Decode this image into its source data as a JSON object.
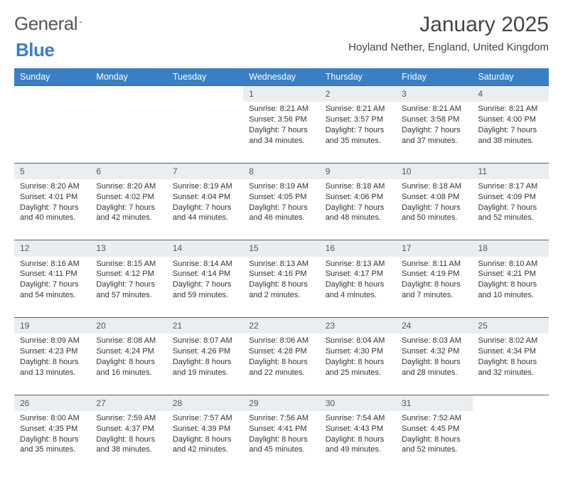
{
  "logo": {
    "text1": "General",
    "text2": "Blue"
  },
  "title": "January 2025",
  "subtitle": "Hoyland Nether, England, United Kingdom",
  "colors": {
    "header_bg": "#3a7fc4",
    "header_fg": "#ffffff",
    "daynum_bg": "#ebeef1",
    "border": "#5a5f66",
    "text": "#333333"
  },
  "fonts": {
    "title_size": 30,
    "subtitle_size": 15,
    "header_size": 12.5,
    "cell_size": 11
  },
  "day_headers": [
    "Sunday",
    "Monday",
    "Tuesday",
    "Wednesday",
    "Thursday",
    "Friday",
    "Saturday"
  ],
  "weeks": [
    {
      "nums": [
        "",
        "",
        "",
        "1",
        "2",
        "3",
        "4"
      ],
      "cells": [
        null,
        null,
        null,
        {
          "sunrise": "Sunrise: 8:21 AM",
          "sunset": "Sunset: 3:56 PM",
          "day1": "Daylight: 7 hours",
          "day2": "and 34 minutes."
        },
        {
          "sunrise": "Sunrise: 8:21 AM",
          "sunset": "Sunset: 3:57 PM",
          "day1": "Daylight: 7 hours",
          "day2": "and 35 minutes."
        },
        {
          "sunrise": "Sunrise: 8:21 AM",
          "sunset": "Sunset: 3:58 PM",
          "day1": "Daylight: 7 hours",
          "day2": "and 37 minutes."
        },
        {
          "sunrise": "Sunrise: 8:21 AM",
          "sunset": "Sunset: 4:00 PM",
          "day1": "Daylight: 7 hours",
          "day2": "and 38 minutes."
        }
      ]
    },
    {
      "nums": [
        "5",
        "6",
        "7",
        "8",
        "9",
        "10",
        "11"
      ],
      "cells": [
        {
          "sunrise": "Sunrise: 8:20 AM",
          "sunset": "Sunset: 4:01 PM",
          "day1": "Daylight: 7 hours",
          "day2": "and 40 minutes."
        },
        {
          "sunrise": "Sunrise: 8:20 AM",
          "sunset": "Sunset: 4:02 PM",
          "day1": "Daylight: 7 hours",
          "day2": "and 42 minutes."
        },
        {
          "sunrise": "Sunrise: 8:19 AM",
          "sunset": "Sunset: 4:04 PM",
          "day1": "Daylight: 7 hours",
          "day2": "and 44 minutes."
        },
        {
          "sunrise": "Sunrise: 8:19 AM",
          "sunset": "Sunset: 4:05 PM",
          "day1": "Daylight: 7 hours",
          "day2": "and 46 minutes."
        },
        {
          "sunrise": "Sunrise: 8:18 AM",
          "sunset": "Sunset: 4:06 PM",
          "day1": "Daylight: 7 hours",
          "day2": "and 48 minutes."
        },
        {
          "sunrise": "Sunrise: 8:18 AM",
          "sunset": "Sunset: 4:08 PM",
          "day1": "Daylight: 7 hours",
          "day2": "and 50 minutes."
        },
        {
          "sunrise": "Sunrise: 8:17 AM",
          "sunset": "Sunset: 4:09 PM",
          "day1": "Daylight: 7 hours",
          "day2": "and 52 minutes."
        }
      ]
    },
    {
      "nums": [
        "12",
        "13",
        "14",
        "15",
        "16",
        "17",
        "18"
      ],
      "cells": [
        {
          "sunrise": "Sunrise: 8:16 AM",
          "sunset": "Sunset: 4:11 PM",
          "day1": "Daylight: 7 hours",
          "day2": "and 54 minutes."
        },
        {
          "sunrise": "Sunrise: 8:15 AM",
          "sunset": "Sunset: 4:12 PM",
          "day1": "Daylight: 7 hours",
          "day2": "and 57 minutes."
        },
        {
          "sunrise": "Sunrise: 8:14 AM",
          "sunset": "Sunset: 4:14 PM",
          "day1": "Daylight: 7 hours",
          "day2": "and 59 minutes."
        },
        {
          "sunrise": "Sunrise: 8:13 AM",
          "sunset": "Sunset: 4:16 PM",
          "day1": "Daylight: 8 hours",
          "day2": "and 2 minutes."
        },
        {
          "sunrise": "Sunrise: 8:13 AM",
          "sunset": "Sunset: 4:17 PM",
          "day1": "Daylight: 8 hours",
          "day2": "and 4 minutes."
        },
        {
          "sunrise": "Sunrise: 8:11 AM",
          "sunset": "Sunset: 4:19 PM",
          "day1": "Daylight: 8 hours",
          "day2": "and 7 minutes."
        },
        {
          "sunrise": "Sunrise: 8:10 AM",
          "sunset": "Sunset: 4:21 PM",
          "day1": "Daylight: 8 hours",
          "day2": "and 10 minutes."
        }
      ]
    },
    {
      "nums": [
        "19",
        "20",
        "21",
        "22",
        "23",
        "24",
        "25"
      ],
      "cells": [
        {
          "sunrise": "Sunrise: 8:09 AM",
          "sunset": "Sunset: 4:23 PM",
          "day1": "Daylight: 8 hours",
          "day2": "and 13 minutes."
        },
        {
          "sunrise": "Sunrise: 8:08 AM",
          "sunset": "Sunset: 4:24 PM",
          "day1": "Daylight: 8 hours",
          "day2": "and 16 minutes."
        },
        {
          "sunrise": "Sunrise: 8:07 AM",
          "sunset": "Sunset: 4:26 PM",
          "day1": "Daylight: 8 hours",
          "day2": "and 19 minutes."
        },
        {
          "sunrise": "Sunrise: 8:06 AM",
          "sunset": "Sunset: 4:28 PM",
          "day1": "Daylight: 8 hours",
          "day2": "and 22 minutes."
        },
        {
          "sunrise": "Sunrise: 8:04 AM",
          "sunset": "Sunset: 4:30 PM",
          "day1": "Daylight: 8 hours",
          "day2": "and 25 minutes."
        },
        {
          "sunrise": "Sunrise: 8:03 AM",
          "sunset": "Sunset: 4:32 PM",
          "day1": "Daylight: 8 hours",
          "day2": "and 28 minutes."
        },
        {
          "sunrise": "Sunrise: 8:02 AM",
          "sunset": "Sunset: 4:34 PM",
          "day1": "Daylight: 8 hours",
          "day2": "and 32 minutes."
        }
      ]
    },
    {
      "nums": [
        "26",
        "27",
        "28",
        "29",
        "30",
        "31",
        ""
      ],
      "cells": [
        {
          "sunrise": "Sunrise: 8:00 AM",
          "sunset": "Sunset: 4:35 PM",
          "day1": "Daylight: 8 hours",
          "day2": "and 35 minutes."
        },
        {
          "sunrise": "Sunrise: 7:59 AM",
          "sunset": "Sunset: 4:37 PM",
          "day1": "Daylight: 8 hours",
          "day2": "and 38 minutes."
        },
        {
          "sunrise": "Sunrise: 7:57 AM",
          "sunset": "Sunset: 4:39 PM",
          "day1": "Daylight: 8 hours",
          "day2": "and 42 minutes."
        },
        {
          "sunrise": "Sunrise: 7:56 AM",
          "sunset": "Sunset: 4:41 PM",
          "day1": "Daylight: 8 hours",
          "day2": "and 45 minutes."
        },
        {
          "sunrise": "Sunrise: 7:54 AM",
          "sunset": "Sunset: 4:43 PM",
          "day1": "Daylight: 8 hours",
          "day2": "and 49 minutes."
        },
        {
          "sunrise": "Sunrise: 7:52 AM",
          "sunset": "Sunset: 4:45 PM",
          "day1": "Daylight: 8 hours",
          "day2": "and 52 minutes."
        },
        null
      ]
    }
  ]
}
